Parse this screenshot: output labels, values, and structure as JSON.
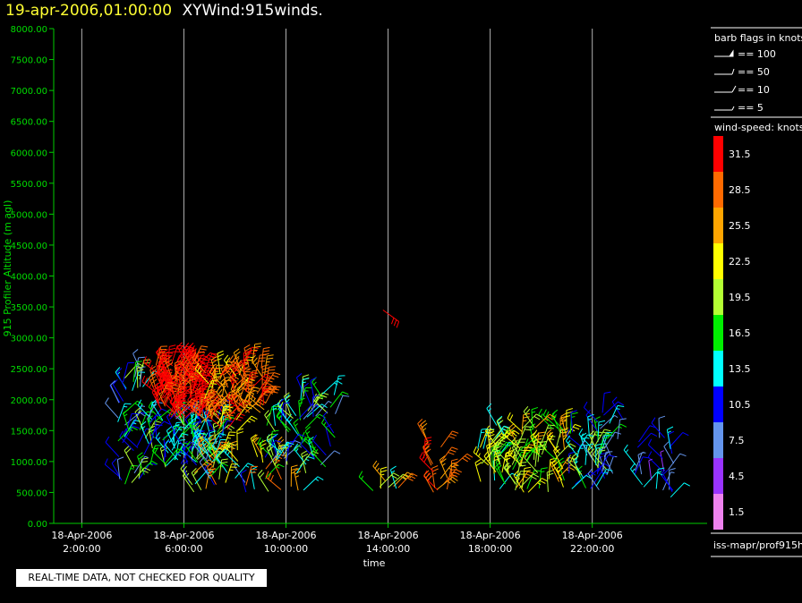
{
  "title": {
    "date": "19-apr-2006,01:00:00",
    "product": "XYWind:915winds."
  },
  "colors": {
    "axis": "#00cc00",
    "grid": "#b0b0b0",
    "tick_text": "#00dd00",
    "text": "#ffffff"
  },
  "chart_data": {
    "type": "scatter",
    "subtype": "wind-barbs",
    "xlabel": "time",
    "ylabel": "915 Profiler Altitude (m agl)",
    "ylim": [
      0,
      8000
    ],
    "yticks": [
      "0.00",
      "500.00",
      "1000.00",
      "1500.00",
      "2000.00",
      "2500.00",
      "3000.00",
      "3500.00",
      "4000.00",
      "4500.00",
      "5000.00",
      "5500.00",
      "6000.00",
      "6500.00",
      "7000.00",
      "7500.00",
      "8000.00"
    ],
    "xlim_hours": [
      0.9,
      26.5
    ],
    "xticks": [
      {
        "hour": 2,
        "date": "18-Apr-2006",
        "time": "2:00:00"
      },
      {
        "hour": 6,
        "date": "18-Apr-2006",
        "time": "6:00:00"
      },
      {
        "hour": 10,
        "date": "18-Apr-2006",
        "time": "10:00:00"
      },
      {
        "hour": 14,
        "date": "18-Apr-2006",
        "time": "14:00:00"
      },
      {
        "hour": 18,
        "date": "18-Apr-2006",
        "time": "18:00:00"
      },
      {
        "hour": 22,
        "date": "18-Apr-2006",
        "time": "22:00:00"
      }
    ],
    "grid": "vertical",
    "barb_clusters": [
      {
        "hour_start": 3.4,
        "hour_end": 4.5,
        "alt_min": 500,
        "alt_max": 2500,
        "speed": [
          6,
          20
        ],
        "n": 45
      },
      {
        "hour_start": 4.5,
        "hour_end": 7.6,
        "alt_min": 900,
        "alt_max": 1700,
        "speed": [
          8,
          20
        ],
        "n": 95
      },
      {
        "hour_start": 4.9,
        "hour_end": 6.8,
        "alt_min": 1700,
        "alt_max": 2600,
        "speed": [
          28,
          34
        ],
        "n": 120
      },
      {
        "hour_start": 6.8,
        "hour_end": 8.2,
        "alt_min": 1500,
        "alt_max": 2500,
        "speed": [
          22,
          31
        ],
        "n": 50
      },
      {
        "hour_start": 8.1,
        "hour_end": 9.2,
        "alt_min": 1700,
        "alt_max": 2600,
        "speed": [
          26,
          32
        ],
        "n": 40
      },
      {
        "hour_start": 6.2,
        "hour_end": 10.8,
        "alt_min": 500,
        "alt_max": 1200,
        "speed": [
          6,
          30
        ],
        "n": 60
      },
      {
        "hour_start": 9.2,
        "hour_end": 12.0,
        "alt_min": 900,
        "alt_max": 2100,
        "speed": [
          7,
          20
        ],
        "n": 55
      },
      {
        "hour_start": 13.3,
        "hour_end": 14.5,
        "alt_min": 500,
        "alt_max": 700,
        "speed": [
          8,
          30
        ],
        "n": 8
      },
      {
        "hour_start": 15.4,
        "hour_end": 16.8,
        "alt_min": 500,
        "alt_max": 1350,
        "speed": [
          24,
          31
        ],
        "n": 18
      },
      {
        "hour_start": 17.5,
        "hour_end": 19.0,
        "alt_min": 500,
        "alt_max": 1650,
        "speed": [
          12,
          24
        ],
        "n": 40
      },
      {
        "hour_start": 19.0,
        "hour_end": 21.0,
        "alt_min": 500,
        "alt_max": 1550,
        "speed": [
          16,
          26
        ],
        "n": 60
      },
      {
        "hour_start": 21.0,
        "hour_end": 22.6,
        "alt_min": 500,
        "alt_max": 1500,
        "speed": [
          10,
          20
        ],
        "n": 35
      },
      {
        "hour_start": 22.0,
        "hour_end": 23.2,
        "alt_min": 500,
        "alt_max": 1800,
        "speed": [
          6,
          14
        ],
        "n": 18
      },
      {
        "hour_start": 23.6,
        "hour_end": 25.2,
        "alt_min": 400,
        "alt_max": 1400,
        "speed": [
          5,
          14
        ],
        "n": 25
      }
    ],
    "outlier_barbs": [
      {
        "hour": 13.8,
        "alt": 3450,
        "speed": 31
      }
    ]
  },
  "legend": {
    "barb_title": "barb flags in knots",
    "barb_items": [
      "== 100",
      "== 50",
      "== 10",
      "== 5"
    ],
    "speed_title": "wind-speed: knots",
    "speed_scale": [
      {
        "label": "31.5",
        "color": "#ff0000"
      },
      {
        "label": "28.5",
        "color": "#ff6a00"
      },
      {
        "label": "25.5",
        "color": "#ffa500"
      },
      {
        "label": "22.5",
        "color": "#ffff00"
      },
      {
        "label": "19.5",
        "color": "#b3ff33"
      },
      {
        "label": "16.5",
        "color": "#00ee00"
      },
      {
        "label": "13.5",
        "color": "#00ffff"
      },
      {
        "label": "10.5",
        "color": "#0000ff"
      },
      {
        "label": "7.5",
        "color": "#6495ed"
      },
      {
        "label": "4.5",
        "color": "#9933ff"
      },
      {
        "label": "1.5",
        "color": "#ee82ee"
      }
    ],
    "source": "iss-mapr/prof915h"
  },
  "qc_notice": "REAL-TIME DATA, NOT CHECKED FOR QUALITY"
}
